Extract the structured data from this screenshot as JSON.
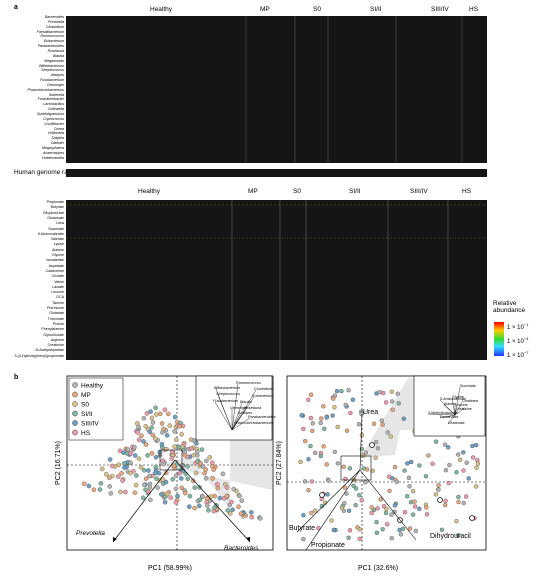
{
  "panel_a": {
    "letter": "a",
    "groups_top": [
      "Healthy",
      "MP",
      "S0",
      "SI/II",
      "SIII/IV",
      "HS"
    ],
    "genera": [
      "Bacteroides",
      "Prevotella",
      "Clostridium",
      "Faecalibacterium",
      "Ruminococcus",
      "Eubacterium",
      "Parabacteroides",
      "Roseburia",
      "Blautia",
      "Megamonas",
      "Bifidobacterium",
      "Streptococcus",
      "Alistipes",
      "Fusobacterium",
      "Gemmiger",
      "Phascolarctobacterium",
      "Sutterella",
      "Fusicatenibacter",
      "Lactobacillus",
      "Collinsella",
      "Subdoligranulum",
      "Coprococcus",
      "Oscillibacter",
      "Dorea",
      "Veillonella",
      "Shigella",
      "Dialister",
      "Megasphaera",
      "Anaerostipes",
      "Holdemanella"
    ],
    "human_genome_label": "Human genome rate",
    "groups_bottom": [
      "Healthy",
      "MP",
      "S0",
      "SI/II",
      "SIII/IV",
      "HS"
    ],
    "metabolites": [
      "Propionate",
      "Butyrate",
      "Dihydrouracil",
      "Glutamate",
      "Urea",
      "Succinate",
      "5-Aminovalerate",
      "Valerate",
      "Lysine",
      "Alanine",
      "Glycine",
      "Isovalerate",
      "Aspartate",
      "Cadaverine",
      "Cholate",
      "Valine",
      "Lactate",
      "Leucine",
      "DCA",
      "Taurine",
      "Putrescine",
      "Glutarate",
      "Threonate",
      "Proline",
      "Phenylalanine",
      "Glycocholate",
      "Arginine",
      "Creatinine",
      "N-Acetylaspartate",
      "3-(4-Hydroxyphenyl)propionate"
    ],
    "legend_title": "Relative\nabundance",
    "legend_ticks": [
      "1 × 10",
      "1 × 10",
      "1 × 10"
    ],
    "legend_exps": [
      "−1",
      "−4",
      "−7"
    ]
  },
  "panel_b": {
    "letter": "b",
    "left": {
      "xlabel": "PC1 (58.99%)",
      "ylabel": "PC2 (16.71%)",
      "legend": [
        {
          "label": "Healthy",
          "color": "#b3b3b3"
        },
        {
          "label": "MP",
          "color": "#e8a87c"
        },
        {
          "label": "S0",
          "color": "#d6c28a"
        },
        {
          "label": "SI/II",
          "color": "#80b8a0"
        },
        {
          "label": "SIII/IV",
          "color": "#6e9fc7"
        },
        {
          "label": "HS",
          "color": "#ee9aaa"
        }
      ],
      "arrows": [
        "Prevotella",
        "Bacteroides"
      ],
      "inset_labels": [
        "Ruminococcus",
        "Bifidobacterium",
        "Clostridium",
        "Streptococcus",
        "Eubacterium",
        "Fusobacterium",
        "Blautia",
        "Roseburia",
        "Gemmiger",
        "Alistipes",
        "Parabacteroides",
        "Phascolarctobacterium"
      ]
    },
    "right": {
      "xlabel": "PC1 (32.6%)",
      "ylabel": "PC2 (27.84%)",
      "arrows": [
        "Urea",
        "Butyrate",
        "Propionate",
        "Dihydrouracil"
      ],
      "inset_labels": [
        "Succinate",
        "Glycine",
        "Creatinine",
        "5-Aminovalerate",
        "Alanine",
        "Leucine",
        "Urea",
        "Valine",
        "3-Methylbutanoate",
        "Pentanoate",
        "Glutamate"
      ]
    }
  }
}
